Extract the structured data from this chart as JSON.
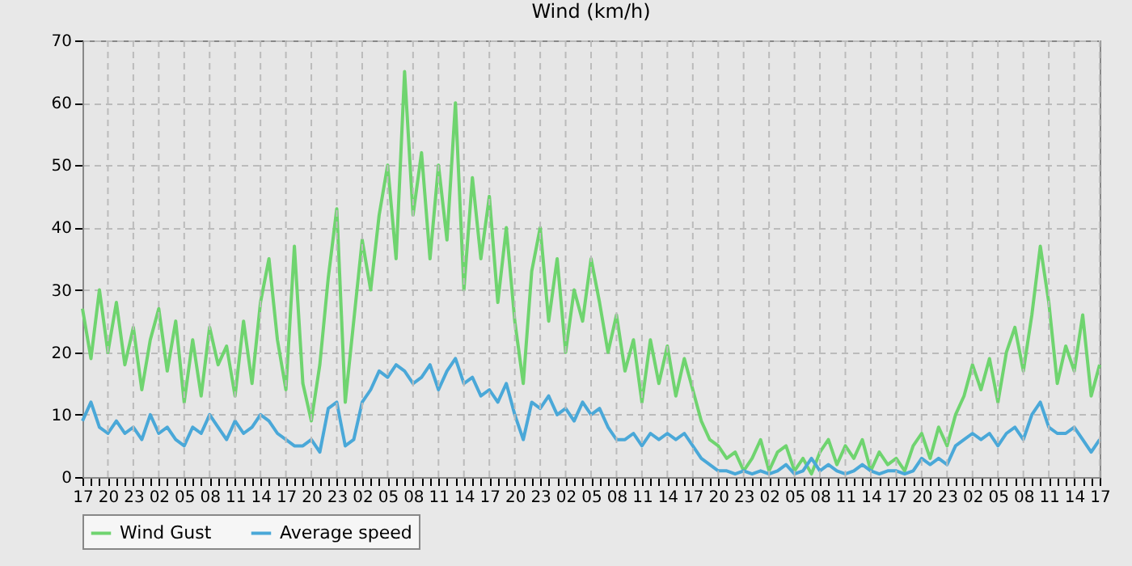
{
  "chart_data": {
    "type": "line",
    "title": "Wind (km/h)",
    "categories": [
      "17",
      null,
      null,
      "20",
      null,
      null,
      "23",
      null,
      null,
      "02",
      null,
      null,
      "05",
      null,
      null,
      "08",
      null,
      null,
      "11",
      null,
      null,
      "14",
      null,
      null,
      "17",
      null,
      null,
      "20",
      null,
      null,
      "23",
      null,
      null,
      "02",
      null,
      null,
      "05",
      null,
      null,
      "08",
      null,
      null,
      "11",
      null,
      null,
      "14",
      null,
      null,
      "17",
      null,
      null,
      "20",
      null,
      null,
      "23",
      null,
      null,
      "02",
      null,
      null,
      "05",
      null,
      null,
      "08",
      null,
      null,
      "11",
      null,
      null,
      "14",
      null,
      null,
      "17",
      null,
      null,
      "20",
      null,
      null,
      "23",
      null,
      null,
      "02",
      null,
      null,
      "05",
      null,
      null,
      "08",
      null,
      null,
      "11",
      null,
      null,
      "14",
      null,
      null,
      "17",
      null,
      null,
      "20",
      null,
      null,
      "23",
      null,
      null,
      "02",
      null,
      null,
      "05",
      null,
      null,
      "08",
      null,
      null,
      "11",
      null,
      null,
      "14",
      null,
      null,
      "17"
    ],
    "series": [
      {
        "name": "Wind Gust",
        "color": "#6fd46f",
        "values": [
          27,
          19,
          30,
          20,
          28,
          18,
          24,
          14,
          22,
          27,
          17,
          25,
          12,
          22,
          13,
          24,
          18,
          21,
          13,
          25,
          15,
          28,
          35,
          22,
          14,
          37,
          15,
          9,
          18,
          32,
          43,
          12,
          25,
          38,
          30,
          42,
          50,
          35,
          65,
          42,
          52,
          35,
          50,
          38,
          60,
          30,
          48,
          35,
          45,
          28,
          40,
          25,
          15,
          33,
          40,
          25,
          35,
          20,
          30,
          25,
          35,
          28,
          20,
          26,
          17,
          22,
          12,
          22,
          15,
          21,
          13,
          19,
          14,
          9,
          6,
          5,
          3,
          4,
          1,
          3,
          6,
          1,
          4,
          5,
          1,
          3,
          0.5,
          4,
          6,
          2,
          5,
          3,
          6,
          1,
          4,
          2,
          3,
          1,
          5,
          7,
          3,
          8,
          5,
          10,
          13,
          18,
          14,
          19,
          12,
          20,
          24,
          17,
          26,
          37,
          28,
          15,
          21,
          17,
          26,
          13,
          18
        ]
      },
      {
        "name": "Average speed",
        "color": "#4aa8d8",
        "values": [
          9,
          12,
          8,
          7,
          9,
          7,
          8,
          6,
          10,
          7,
          8,
          6,
          5,
          8,
          7,
          10,
          8,
          6,
          9,
          7,
          8,
          10,
          9,
          7,
          6,
          5,
          5,
          6,
          4,
          11,
          12,
          5,
          6,
          12,
          14,
          17,
          16,
          18,
          17,
          15,
          16,
          18,
          14,
          17,
          19,
          15,
          16,
          13,
          14,
          12,
          15,
          10,
          6,
          12,
          11,
          13,
          10,
          11,
          9,
          12,
          10,
          11,
          8,
          6,
          6,
          7,
          5,
          7,
          6,
          7,
          6,
          7,
          5,
          3,
          2,
          1,
          1,
          0.5,
          1,
          0.5,
          1,
          0.5,
          1,
          2,
          0.5,
          1,
          3,
          1,
          2,
          1,
          0.5,
          1,
          2,
          1,
          0.5,
          1,
          1,
          0.5,
          1,
          3,
          2,
          3,
          2,
          5,
          6,
          7,
          6,
          7,
          5,
          7,
          8,
          6,
          10,
          12,
          8,
          7,
          7,
          8,
          6,
          4,
          6
        ]
      }
    ],
    "ylim": [
      0,
      70
    ],
    "yticks": [
      0,
      10,
      20,
      30,
      40,
      50,
      60,
      70
    ],
    "grid": true,
    "legend": "bottom",
    "marker": "none",
    "line_style": "solid"
  }
}
